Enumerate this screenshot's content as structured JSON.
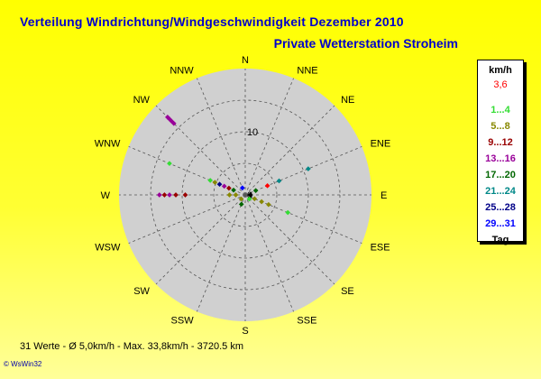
{
  "title": "Verteilung Windrichtung/Windgeschwindigkeit  Dezember 2010",
  "subtitle": "Private Wetterstation Stroheim",
  "footer": "31 Werte   -   Ø 5,0km/h  -  Max. 33,8km/h  -  3720.5 km",
  "brand": "© WsWin32",
  "chart_data": {
    "type": "scatter",
    "projection": "polar",
    "directions": [
      "N",
      "NNE",
      "NE",
      "ENE",
      "E",
      "ESE",
      "SE",
      "SSE",
      "S",
      "SSW",
      "SW",
      "WSW",
      "W",
      "WNW",
      "NW",
      "NNW"
    ],
    "radial_tick": "10",
    "center_label": "0",
    "rmax": 20,
    "grid": true,
    "legend_position": "right",
    "legend": {
      "header": "km/h",
      "current": "3,6",
      "classes": [
        {
          "label": "1...4",
          "color": "#33dd33"
        },
        {
          "label": "5...8",
          "color": "#888800"
        },
        {
          "label": "9...12",
          "color": "#990000"
        },
        {
          "label": "13...16",
          "color": "#990099"
        },
        {
          "label": "17...20",
          "color": "#006600"
        },
        {
          "label": "21...24",
          "color": "#008888"
        },
        {
          "label": "25...28",
          "color": "#000088"
        },
        {
          "label": "29...31",
          "color": "#0000ff"
        },
        {
          "label": "Tag",
          "color": "#000000"
        }
      ]
    },
    "points": [
      {
        "dir": "NW",
        "r": 16.0,
        "color": "#990099"
      },
      {
        "dir": "NW",
        "r": 16.5,
        "color": "#990099"
      },
      {
        "dir": "NW",
        "r": 17.0,
        "color": "#990099"
      },
      {
        "dir": "NW",
        "r": 17.4,
        "color": "#990099"
      },
      {
        "dir": "WNW",
        "r": 13.0,
        "color": "#33dd33"
      },
      {
        "dir": "WNW",
        "r": 6.0,
        "color": "#33dd33"
      },
      {
        "dir": "WNW",
        "r": 5.2,
        "color": "#888800"
      },
      {
        "dir": "WNW",
        "r": 4.4,
        "color": "#000088"
      },
      {
        "dir": "WNW",
        "r": 3.6,
        "color": "#990099"
      },
      {
        "dir": "WNW",
        "r": 2.8,
        "color": "#990000"
      },
      {
        "dir": "WNW",
        "r": 2.0,
        "color": "#006600"
      },
      {
        "dir": "W",
        "r": 13.6,
        "color": "#990099"
      },
      {
        "dir": "W",
        "r": 12.8,
        "color": "#990000"
      },
      {
        "dir": "W",
        "r": 12.0,
        "color": "#990099"
      },
      {
        "dir": "W",
        "r": 11.0,
        "color": "#990000"
      },
      {
        "dir": "W",
        "r": 9.5,
        "color": "#990000"
      },
      {
        "dir": "W",
        "r": 2.5,
        "color": "#888800"
      },
      {
        "dir": "W",
        "r": 1.5,
        "color": "#888800"
      },
      {
        "dir": "ENE",
        "r": 10.8,
        "color": "#008888"
      },
      {
        "dir": "ENE",
        "r": 5.8,
        "color": "#008888"
      },
      {
        "dir": "ENE",
        "r": 3.8,
        "color": "#ff0000"
      },
      {
        "dir": "ENE",
        "r": 1.8,
        "color": "#006600"
      },
      {
        "dir": "ESE",
        "r": 7.3,
        "color": "#33dd33"
      },
      {
        "dir": "ESE",
        "r": 4.0,
        "color": "#888800"
      },
      {
        "dir": "ESE",
        "r": 2.8,
        "color": "#888800"
      },
      {
        "dir": "ESE",
        "r": 1.6,
        "color": "#888800"
      },
      {
        "dir": "SSW",
        "r": 1.6,
        "color": "#006600"
      },
      {
        "dir": "NNW",
        "r": 1.2,
        "color": "#0000ff"
      },
      {
        "dir": "E",
        "r": 0.8,
        "color": "#000000"
      },
      {
        "dir": "SE",
        "r": 0.9,
        "color": "#33dd33"
      },
      {
        "dir": "SW",
        "r": 0.9,
        "color": "#888800"
      }
    ]
  }
}
